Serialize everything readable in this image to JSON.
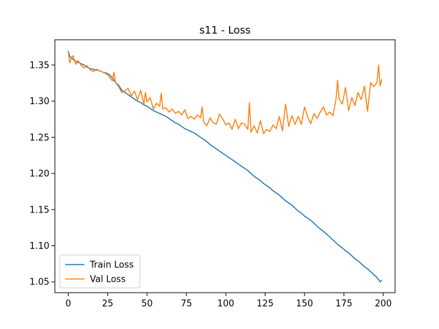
{
  "chart_data": {
    "type": "line",
    "title": "s11 - Loss",
    "xlabel": "",
    "ylabel": "",
    "xlim": [
      -8.5,
      207.5
    ],
    "ylim": [
      1.035,
      1.385
    ],
    "xticks": [
      0,
      25,
      50,
      75,
      100,
      125,
      150,
      175,
      200
    ],
    "yticks": [
      1.05,
      1.1,
      1.15,
      1.2,
      1.25,
      1.3,
      1.35
    ],
    "grid": false,
    "legend_position": "lower-left",
    "series": [
      {
        "name": "Train Loss",
        "color": "#1f77b4",
        "x": [
          0,
          1,
          2,
          3,
          4,
          5,
          6,
          7,
          8,
          9,
          10,
          12,
          14,
          16,
          18,
          20,
          22,
          24,
          26,
          28,
          30,
          32,
          34,
          36,
          38,
          40,
          42,
          44,
          46,
          48,
          50,
          52,
          54,
          56,
          58,
          60,
          62,
          64,
          66,
          68,
          70,
          72,
          74,
          76,
          78,
          80,
          82,
          84,
          86,
          88,
          90,
          92,
          94,
          96,
          98,
          100,
          102,
          104,
          106,
          108,
          110,
          112,
          114,
          116,
          118,
          120,
          122,
          124,
          126,
          128,
          130,
          132,
          134,
          136,
          138,
          140,
          142,
          144,
          146,
          148,
          150,
          152,
          154,
          156,
          158,
          160,
          162,
          164,
          166,
          168,
          170,
          172,
          174,
          176,
          178,
          180,
          182,
          184,
          186,
          188,
          190,
          192,
          194,
          196,
          198,
          199
        ],
        "y": [
          1.369,
          1.362,
          1.36,
          1.358,
          1.356,
          1.355,
          1.354,
          1.353,
          1.352,
          1.351,
          1.35,
          1.347,
          1.345,
          1.344,
          1.343,
          1.342,
          1.34,
          1.339,
          1.337,
          1.332,
          1.326,
          1.322,
          1.315,
          1.312,
          1.309,
          1.306,
          1.303,
          1.3,
          1.298,
          1.295,
          1.293,
          1.29,
          1.287,
          1.285,
          1.283,
          1.281,
          1.279,
          1.276,
          1.273,
          1.27,
          1.268,
          1.265,
          1.262,
          1.26,
          1.258,
          1.256,
          1.253,
          1.25,
          1.247,
          1.244,
          1.24,
          1.237,
          1.234,
          1.231,
          1.228,
          1.225,
          1.222,
          1.219,
          1.216,
          1.213,
          1.21,
          1.207,
          1.204,
          1.2,
          1.196,
          1.193,
          1.19,
          1.186,
          1.183,
          1.18,
          1.176,
          1.173,
          1.17,
          1.166,
          1.162,
          1.159,
          1.156,
          1.152,
          1.148,
          1.145,
          1.141,
          1.138,
          1.135,
          1.131,
          1.127,
          1.123,
          1.12,
          1.116,
          1.112,
          1.108,
          1.104,
          1.1,
          1.097,
          1.093,
          1.09,
          1.086,
          1.082,
          1.079,
          1.075,
          1.071,
          1.068,
          1.064,
          1.06,
          1.056,
          1.05,
          1.052
        ]
      },
      {
        "name": "Val Loss",
        "color": "#ff7f0e",
        "x": [
          0,
          1,
          2,
          3,
          4,
          5,
          6,
          7,
          8,
          9,
          10,
          12,
          14,
          16,
          18,
          20,
          22,
          24,
          26,
          28,
          29,
          30,
          32,
          34,
          36,
          38,
          40,
          42,
          44,
          46,
          48,
          49,
          50,
          52,
          54,
          56,
          58,
          59,
          60,
          62,
          64,
          66,
          68,
          70,
          72,
          74,
          76,
          78,
          80,
          82,
          84,
          85,
          86,
          88,
          90,
          92,
          94,
          96,
          98,
          100,
          102,
          104,
          106,
          108,
          110,
          112,
          114,
          115,
          116,
          118,
          120,
          122,
          124,
          126,
          128,
          130,
          132,
          134,
          136,
          138,
          140,
          142,
          144,
          146,
          148,
          150,
          152,
          154,
          156,
          158,
          160,
          162,
          164,
          166,
          168,
          170,
          171,
          172,
          174,
          176,
          178,
          180,
          182,
          184,
          186,
          188,
          190,
          192,
          194,
          196,
          197,
          198,
          199
        ],
        "y": [
          1.368,
          1.353,
          1.36,
          1.363,
          1.356,
          1.351,
          1.356,
          1.354,
          1.35,
          1.348,
          1.346,
          1.349,
          1.343,
          1.341,
          1.344,
          1.342,
          1.34,
          1.338,
          1.334,
          1.328,
          1.34,
          1.326,
          1.32,
          1.312,
          1.314,
          1.318,
          1.307,
          1.314,
          1.302,
          1.315,
          1.296,
          1.312,
          1.299,
          1.305,
          1.289,
          1.297,
          1.293,
          1.311,
          1.289,
          1.291,
          1.285,
          1.289,
          1.283,
          1.286,
          1.281,
          1.288,
          1.276,
          1.279,
          1.275,
          1.281,
          1.277,
          1.292,
          1.271,
          1.266,
          1.277,
          1.27,
          1.268,
          1.282,
          1.276,
          1.267,
          1.27,
          1.261,
          1.275,
          1.262,
          1.27,
          1.268,
          1.261,
          1.298,
          1.257,
          1.266,
          1.256,
          1.273,
          1.255,
          1.261,
          1.258,
          1.267,
          1.262,
          1.279,
          1.259,
          1.296,
          1.265,
          1.28,
          1.268,
          1.279,
          1.268,
          1.292,
          1.278,
          1.269,
          1.283,
          1.276,
          1.285,
          1.292,
          1.281,
          1.285,
          1.28,
          1.303,
          1.329,
          1.303,
          1.296,
          1.319,
          1.287,
          1.305,
          1.294,
          1.312,
          1.302,
          1.321,
          1.286,
          1.326,
          1.32,
          1.326,
          1.35,
          1.321,
          1.33
        ]
      }
    ]
  }
}
